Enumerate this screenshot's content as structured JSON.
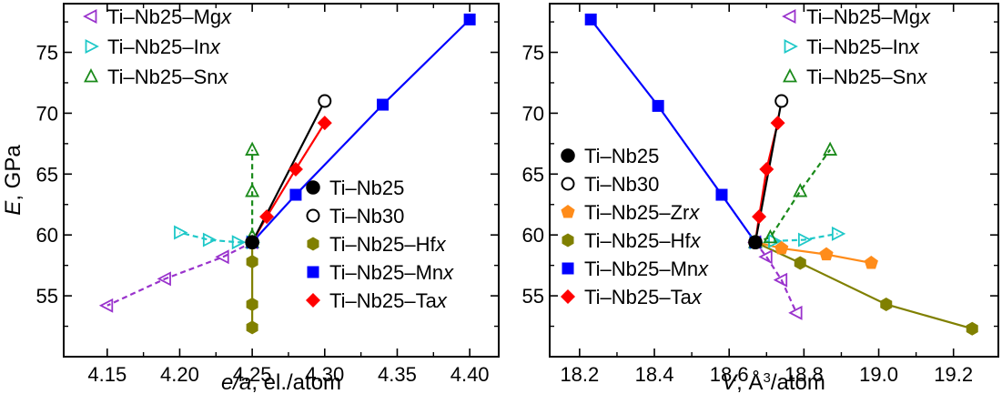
{
  "chart_data": [
    {
      "type": "scatter",
      "xlabel": "e/a, el./atom",
      "ylabel": "E, GPa",
      "xlim": [
        4.12,
        4.42
      ],
      "ylim": [
        50,
        79
      ],
      "xticks": [
        "4.15",
        "4.20",
        "4.25",
        "4.30",
        "4.35",
        "4.40"
      ],
      "yticks": [
        "55",
        "60",
        "65",
        "70",
        "75"
      ],
      "grid": false,
      "legends": [
        {
          "placement": "top-left",
          "entries": [
            "Ti–Nb25–Mgx",
            "Ti–Nb25–Inx",
            "Ti–Nb25–Snx"
          ]
        },
        {
          "placement": "bottom-right",
          "entries": [
            "Ti–Nb25",
            "Ti–Nb30",
            "Ti–Nb25–Hfx",
            "Ti–Nb25–Mnx",
            "Ti–Nb25–Tax"
          ]
        }
      ],
      "series": [
        {
          "name": "Ti–Nb25",
          "color": "#000000",
          "marker": "circle-filled",
          "points": [
            [
              4.25,
              59.4
            ]
          ]
        },
        {
          "name": "Ti–Nb30",
          "color": "#000000",
          "marker": "circle-open",
          "points": [
            [
              4.3,
              71.0
            ]
          ]
        },
        {
          "name": "Ti–Nb25–Mgx",
          "color": "#9932cc",
          "marker": "triangle-left",
          "line": "dashed",
          "points": [
            [
              4.25,
              59.4
            ],
            [
              4.23,
              58.2
            ],
            [
              4.19,
              56.4
            ],
            [
              4.15,
              54.2
            ]
          ]
        },
        {
          "name": "Ti–Nb25–Inx",
          "color": "#1ec8c8",
          "marker": "triangle-right",
          "line": "dashed",
          "points": [
            [
              4.25,
              59.4
            ],
            [
              4.24,
              59.4
            ],
            [
              4.22,
              59.6
            ],
            [
              4.2,
              60.2
            ]
          ]
        },
        {
          "name": "Ti–Nb25–Snx",
          "color": "#1a8a1a",
          "marker": "triangle-up",
          "line": "dashed",
          "points": [
            [
              4.25,
              59.4
            ],
            [
              4.25,
              59.9
            ],
            [
              4.25,
              63.6
            ],
            [
              4.25,
              67.0
            ]
          ]
        },
        {
          "name": "Ti–Nb25–Hfx",
          "color": "#808000",
          "marker": "hexagon",
          "line": "solid",
          "points": [
            [
              4.25,
              59.4
            ],
            [
              4.25,
              57.8
            ],
            [
              4.25,
              54.3
            ],
            [
              4.25,
              52.4
            ]
          ]
        },
        {
          "name": "Ti–Nb25–Mnx",
          "color": "#0000ff",
          "marker": "square",
          "line": "solid",
          "points": [
            [
              4.25,
              59.4
            ],
            [
              4.28,
              63.3
            ],
            [
              4.34,
              70.7
            ],
            [
              4.4,
              77.7
            ]
          ]
        },
        {
          "name": "Ti–Nb25–Tax",
          "color": "#ff0000",
          "marker": "diamond",
          "line": "solid",
          "points": [
            [
              4.25,
              59.4
            ],
            [
              4.26,
              61.5
            ],
            [
              4.28,
              65.4
            ],
            [
              4.3,
              69.2
            ]
          ]
        },
        {
          "name": "Ti–Nb",
          "color": "#000000",
          "line": "solid",
          "legend": false,
          "points": [
            [
              4.25,
              59.4
            ],
            [
              4.3,
              71.0
            ]
          ]
        }
      ]
    },
    {
      "type": "scatter",
      "xlabel": "V, Å³/atom",
      "ylabel": "",
      "xlim": [
        18.12,
        19.32
      ],
      "ylim": [
        50,
        79
      ],
      "xticks": [
        "18.2",
        "18.4",
        "18.6",
        "18.8",
        "19.0",
        "19.2"
      ],
      "yticks": [
        "55",
        "60",
        "65",
        "70",
        "75"
      ],
      "grid": false,
      "legends": [
        {
          "placement": "top-right",
          "entries": [
            "Ti–Nb25–Mgx",
            "Ti–Nb25–Inx",
            "Ti–Nb25–Snx"
          ]
        },
        {
          "placement": "bottom-left",
          "entries": [
            "Ti–Nb25",
            "Ti–Nb30",
            "Ti–Nb25–Zrx",
            "Ti–Nb25–Hfx",
            "Ti–Nb25–Mnx",
            "Ti–Nb25–Tax"
          ]
        }
      ],
      "series": [
        {
          "name": "Ti–Nb25",
          "color": "#000000",
          "marker": "circle-filled",
          "points": [
            [
              18.67,
              59.4
            ]
          ]
        },
        {
          "name": "Ti–Nb30",
          "color": "#000000",
          "marker": "circle-open",
          "points": [
            [
              18.74,
              71.0
            ]
          ]
        },
        {
          "name": "Ti–Nb25–Mgx",
          "color": "#9932cc",
          "marker": "triangle-left",
          "line": "dashed",
          "points": [
            [
              18.67,
              59.4
            ],
            [
              18.7,
              58.2
            ],
            [
              18.74,
              56.3
            ],
            [
              18.78,
              53.6
            ]
          ]
        },
        {
          "name": "Ti–Nb25–Inx",
          "color": "#1ec8c8",
          "marker": "triangle-right",
          "line": "dashed",
          "points": [
            [
              18.67,
              59.4
            ],
            [
              18.72,
              59.5
            ],
            [
              18.8,
              59.6
            ],
            [
              18.89,
              60.1
            ]
          ]
        },
        {
          "name": "Ti–Nb25–Snx",
          "color": "#1a8a1a",
          "marker": "triangle-up",
          "line": "dashed",
          "points": [
            [
              18.67,
              59.4
            ],
            [
              18.71,
              59.8
            ],
            [
              18.79,
              63.6
            ],
            [
              18.87,
              67.0
            ]
          ]
        },
        {
          "name": "Ti–Nb25–Zrx",
          "color": "#ff8c1a",
          "marker": "pentagon",
          "line": "solid",
          "points": [
            [
              18.67,
              59.4
            ],
            [
              18.74,
              58.9
            ],
            [
              18.86,
              58.4
            ],
            [
              18.98,
              57.7
            ]
          ]
        },
        {
          "name": "Ti–Nb25–Hfx",
          "color": "#808000",
          "marker": "hexagon",
          "line": "solid",
          "points": [
            [
              18.67,
              59.4
            ],
            [
              18.79,
              57.7
            ],
            [
              19.02,
              54.3
            ],
            [
              19.25,
              52.3
            ]
          ]
        },
        {
          "name": "Ti–Nb25–Mnx",
          "color": "#0000ff",
          "marker": "square",
          "line": "solid",
          "points": [
            [
              18.67,
              59.4
            ],
            [
              18.58,
              63.3
            ],
            [
              18.41,
              70.6
            ],
            [
              18.23,
              77.7
            ]
          ]
        },
        {
          "name": "Ti–Nb25–Tax",
          "color": "#ff0000",
          "marker": "diamond",
          "line": "solid",
          "points": [
            [
              18.67,
              59.4
            ],
            [
              18.68,
              61.5
            ],
            [
              18.7,
              65.4
            ],
            [
              18.73,
              69.2
            ]
          ]
        },
        {
          "name": "Ti–Nb",
          "color": "#000000",
          "line": "solid",
          "legend": false,
          "points": [
            [
              18.67,
              59.4
            ],
            [
              18.74,
              71.0
            ]
          ]
        }
      ]
    }
  ]
}
